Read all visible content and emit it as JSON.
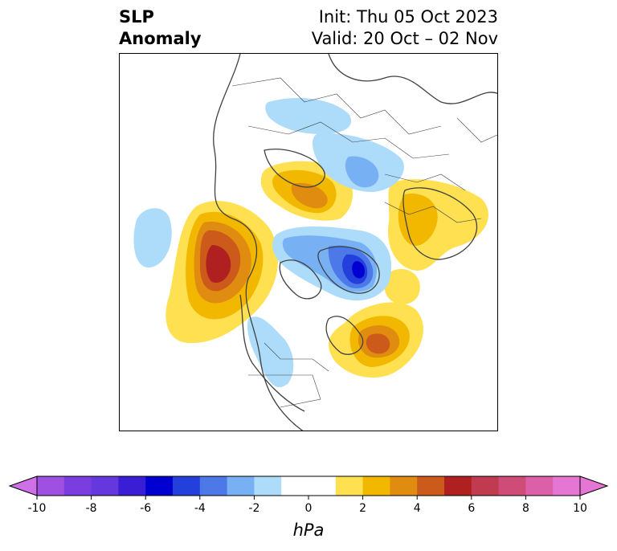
{
  "title": {
    "left_line1": "SLP",
    "left_line2": "Anomaly",
    "right_line1": "Init: Thu 05 Oct 2023",
    "right_line2": "Valid: 20 Oct – 02 Nov"
  },
  "map": {
    "projection": "north-polar-stereographic",
    "field": "sea level pressure anomaly",
    "features": [
      {
        "name": "positive-anomaly-alaska-bering",
        "peak_hpa": 6
      },
      {
        "name": "positive-anomaly-east-siberia",
        "peak_hpa": 4
      },
      {
        "name": "positive-anomaly-central-asia",
        "peak_hpa": 2
      },
      {
        "name": "positive-anomaly-nw-atlantic",
        "peak_hpa": 4
      },
      {
        "name": "negative-anomaly-greenland-arctic",
        "peak_hpa": -6
      },
      {
        "name": "negative-anomaly-europe-russia",
        "peak_hpa": -2
      },
      {
        "name": "negative-anomaly-western-us",
        "peak_hpa": -2
      },
      {
        "name": "negative-anomaly-north-pacific",
        "peak_hpa": -1
      }
    ]
  },
  "colorbar": {
    "unit": "hPa",
    "tick_labels": [
      "-10",
      "-8",
      "-6",
      "-4",
      "-2",
      "0",
      "2",
      "4",
      "6",
      "8",
      "10"
    ],
    "tick_values": [
      -10,
      -8,
      -6,
      -4,
      -2,
      0,
      2,
      4,
      6,
      8,
      10
    ],
    "bins": [
      {
        "from": -10,
        "to": -9,
        "color": "#a050e0"
      },
      {
        "from": -9,
        "to": -8,
        "color": "#7a3ee0"
      },
      {
        "from": -8,
        "to": -7,
        "color": "#6438dc"
      },
      {
        "from": -7,
        "to": -6,
        "color": "#3a1ed6"
      },
      {
        "from": -6,
        "to": -5,
        "color": "#0000d0"
      },
      {
        "from": -5,
        "to": -4,
        "color": "#2440dc"
      },
      {
        "from": -4,
        "to": -3,
        "color": "#4c78e8"
      },
      {
        "from": -3,
        "to": -2,
        "color": "#78b0f4"
      },
      {
        "from": -2,
        "to": -1,
        "color": "#acdcfa"
      },
      {
        "from": -1,
        "to": 1,
        "color": "#ffffff"
      },
      {
        "from": 1,
        "to": 2,
        "color": "#ffe050"
      },
      {
        "from": 2,
        "to": 3,
        "color": "#f2b800"
      },
      {
        "from": 3,
        "to": 4,
        "color": "#e08c10"
      },
      {
        "from": 4,
        "to": 5,
        "color": "#cc5a1a"
      },
      {
        "from": 5,
        "to": 6,
        "color": "#b02020"
      },
      {
        "from": 6,
        "to": 7,
        "color": "#c03a50"
      },
      {
        "from": 7,
        "to": 8,
        "color": "#d04c78"
      },
      {
        "from": 8,
        "to": 9,
        "color": "#dc60a8"
      },
      {
        "from": 9,
        "to": 10,
        "color": "#e676d4"
      }
    ],
    "extend_low_color": "#d070e8",
    "extend_high_color": "#e676d4"
  }
}
